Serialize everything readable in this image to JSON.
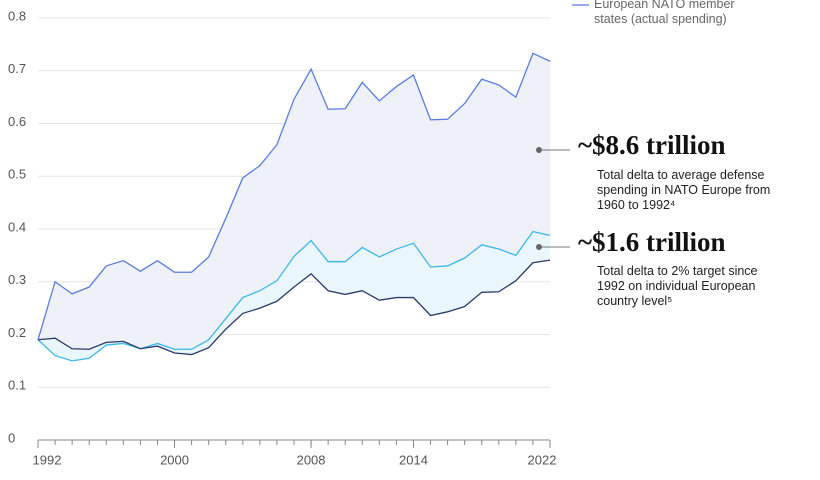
{
  "chart_data": {
    "type": "line",
    "x": [
      1992,
      1993,
      1994,
      1995,
      1996,
      1997,
      1998,
      1999,
      2000,
      2001,
      2002,
      2003,
      2004,
      2005,
      2006,
      2007,
      2008,
      2009,
      2010,
      2011,
      2012,
      2013,
      2014,
      2015,
      2016,
      2017,
      2018,
      2019,
      2020,
      2021,
      2022
    ],
    "series": [
      {
        "name": "European NATO member states (actual spending)",
        "color": "#5b7be0",
        "values": [
          0.19,
          0.3,
          0.277,
          0.29,
          0.33,
          0.34,
          0.32,
          0.34,
          0.318,
          0.318,
          0.347,
          0.42,
          0.497,
          0.52,
          0.56,
          0.646,
          0.703,
          0.627,
          0.628,
          0.678,
          0.643,
          0.67,
          0.692,
          0.607,
          0.608,
          0.638,
          0.684,
          0.673,
          0.65,
          0.733,
          0.718
        ]
      },
      {
        "color": "#3bb8e8",
        "values": [
          0.19,
          0.16,
          0.15,
          0.155,
          0.18,
          0.183,
          0.173,
          0.183,
          0.172,
          0.172,
          0.19,
          0.23,
          0.27,
          0.283,
          0.302,
          0.348,
          0.378,
          0.338,
          0.338,
          0.365,
          0.347,
          0.362,
          0.373,
          0.328,
          0.33,
          0.345,
          0.37,
          0.362,
          0.35,
          0.395,
          0.388
        ]
      },
      {
        "color": "#2c3a6b",
        "values": [
          0.19,
          0.193,
          0.173,
          0.172,
          0.185,
          0.187,
          0.173,
          0.178,
          0.165,
          0.162,
          0.175,
          0.21,
          0.24,
          0.25,
          0.263,
          0.29,
          0.315,
          0.283,
          0.276,
          0.283,
          0.265,
          0.27,
          0.27,
          0.236,
          0.243,
          0.253,
          0.28,
          0.281,
          0.302,
          0.336,
          0.341
        ]
      }
    ],
    "xlim": [
      1992,
      2022
    ],
    "xticks": [
      1992,
      2000,
      2008,
      2014,
      2022
    ],
    "ylim": [
      0,
      0.8
    ],
    "yticks": [
      0,
      0.1,
      0.2,
      0.3,
      0.4,
      0.5,
      0.6,
      0.7,
      0.8
    ],
    "grid": true,
    "annotations": [
      {
        "title": "~$8.6 trillion",
        "text": "Total delta to average defense spending in NATO Europe from 1960 to 1992⁴"
      },
      {
        "title": "~$1.6 trillion",
        "text": "Total delta to 2% target since 1992 on individual European country level⁵"
      }
    ]
  }
}
